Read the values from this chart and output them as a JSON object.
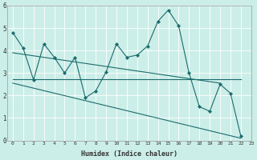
{
  "xlabel": "Humidex (Indice chaleur)",
  "background_color": "#cceee8",
  "line_color": "#1a6b6b",
  "xlim": [
    -0.5,
    23
  ],
  "ylim": [
    0,
    6
  ],
  "xticks": [
    0,
    1,
    2,
    3,
    4,
    5,
    6,
    7,
    8,
    9,
    10,
    11,
    12,
    13,
    14,
    15,
    16,
    17,
    18,
    19,
    20,
    21,
    22,
    23
  ],
  "yticks": [
    0,
    1,
    2,
    3,
    4,
    5,
    6
  ],
  "series1_x": [
    0,
    1,
    2,
    3,
    4,
    5,
    6,
    7,
    8,
    9,
    10,
    11,
    12,
    13,
    14,
    15,
    16,
    17,
    18,
    19,
    20,
    21,
    22
  ],
  "series1_y": [
    4.8,
    4.1,
    2.7,
    4.3,
    3.7,
    3.0,
    3.7,
    1.9,
    2.2,
    3.05,
    4.3,
    3.7,
    3.8,
    4.2,
    5.3,
    5.8,
    5.1,
    3.0,
    1.5,
    1.3,
    2.5,
    2.1,
    0.2
  ],
  "series2_x": [
    0,
    22
  ],
  "series2_y": [
    2.73,
    2.73
  ],
  "series3_x": [
    0,
    20
  ],
  "series3_y": [
    3.9,
    2.55
  ],
  "series4_x": [
    0,
    22
  ],
  "series4_y": [
    2.55,
    0.1
  ],
  "grid_color": "#ffffff",
  "font_color": "#333333",
  "grid_linewidth": 0.6,
  "line_linewidth": 0.8,
  "marker_size": 2.2
}
